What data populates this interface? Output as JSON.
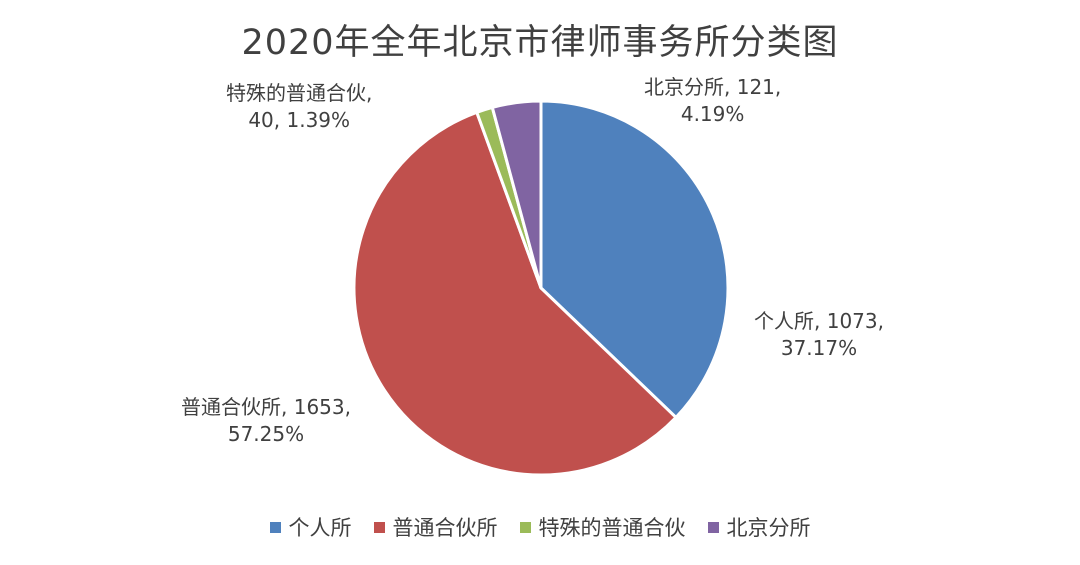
{
  "chart_data": {
    "type": "pie",
    "title": "2020年全年北京市律师事务所分类图",
    "slices": [
      {
        "name": "个人所",
        "value": 1073,
        "percent_label": "37.17%",
        "color": "#4F81BD"
      },
      {
        "name": "普通合伙所",
        "value": 1653,
        "percent_label": "57.25%",
        "color": "#C0504D"
      },
      {
        "name": "特殊的普通合伙",
        "value": 40,
        "percent_label": "1.39%",
        "color": "#9BBB59"
      },
      {
        "name": "北京分所",
        "value": 121,
        "percent_label": "4.19%",
        "color": "#8064A2"
      }
    ],
    "labels": [
      {
        "line1": "个人所, 1073,",
        "line2": "37.17%"
      },
      {
        "line1": "普通合伙所, 1653,",
        "line2": "57.25%"
      },
      {
        "line1": "特殊的普通合伙,",
        "line2": "40, 1.39%"
      },
      {
        "line1": "北京分所, 121,",
        "line2": "4.19%"
      }
    ],
    "legend_position": "bottom"
  }
}
